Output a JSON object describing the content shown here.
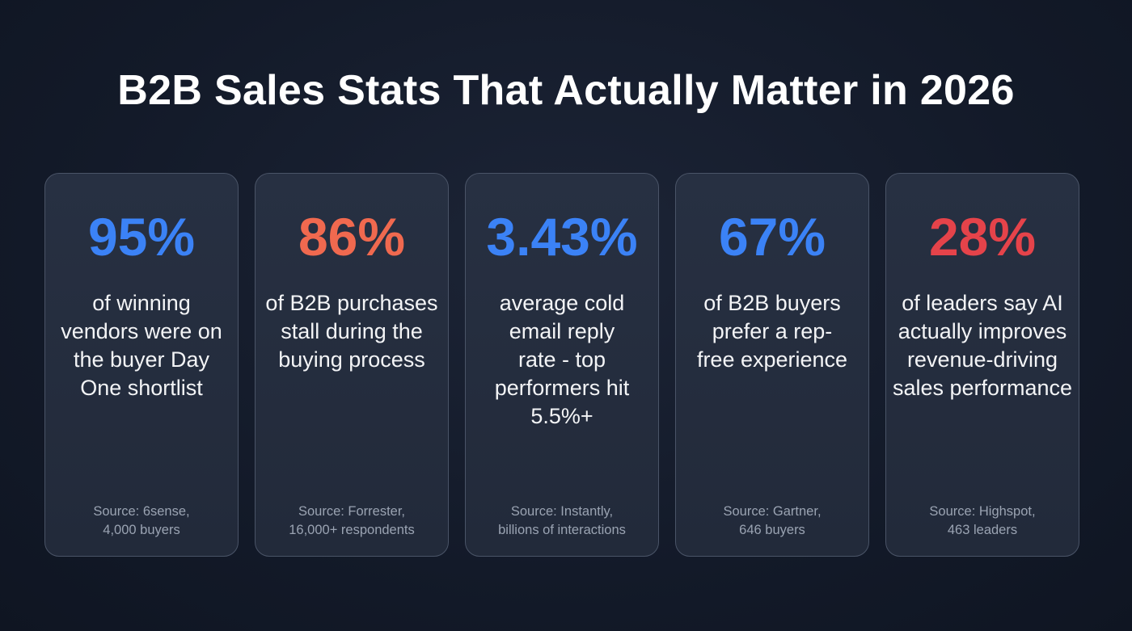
{
  "title": "B2B Sales Stats That Actually Matter in 2026",
  "colors": {
    "blue": "#3b82f6",
    "orange": "#f0694f",
    "red": "#e5434a"
  },
  "cards": [
    {
      "stat": "95%",
      "color": "#3b82f6",
      "desc": "of winning vendors were on the buyer Day One shortlist",
      "source1": "Source: 6sense,",
      "source2": "4,000 buyers"
    },
    {
      "stat": "86%",
      "color": "#f0694f",
      "desc": "of B2B purchases stall during the buying process",
      "source1": "Source: Forrester,",
      "source2": "16,000+ respondents"
    },
    {
      "stat": "3.43%",
      "color": "#3b82f6",
      "desc": "average cold email reply rate - top performers hit 5.5%+",
      "source1": "Source: Instantly,",
      "source2": "billions of interactions"
    },
    {
      "stat": "67%",
      "color": "#3b82f6",
      "desc": "of B2B buyers prefer a rep-free experience",
      "source1": "Source: Gartner,",
      "source2": "646 buyers"
    },
    {
      "stat": "28%",
      "color": "#e5434a",
      "desc": "of leaders say AI actually improves revenue-driving sales performance",
      "source1": "Source: Highspot,",
      "source2": "463 leaders"
    }
  ]
}
